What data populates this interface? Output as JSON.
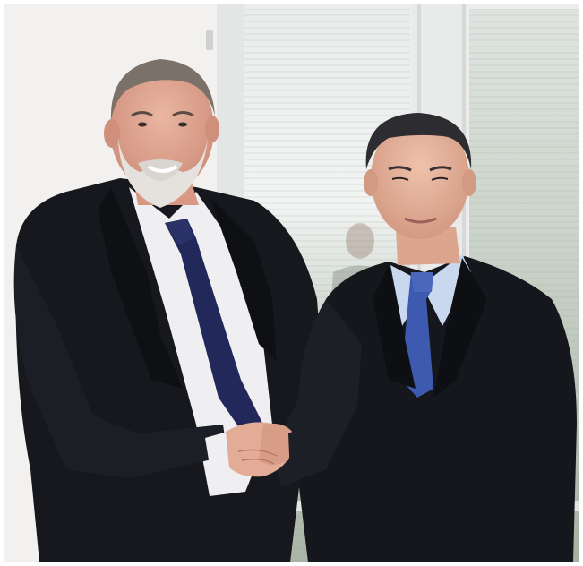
{
  "photo": {
    "subject": "two-men-handshake",
    "colors": {
      "wall": "#f2f1ef",
      "window_frame": "#e9ebea",
      "blind_light": "#d9dfd9",
      "blind_shadow": "#aeb8ab",
      "suit_dark": "#15171c",
      "shirt_white": "#efeef1",
      "shirt_blue": "#c9d7ef",
      "tie_navy": "#22285a",
      "tie_blue": "#3d5ab0",
      "skin": "#e2ac97"
    }
  }
}
